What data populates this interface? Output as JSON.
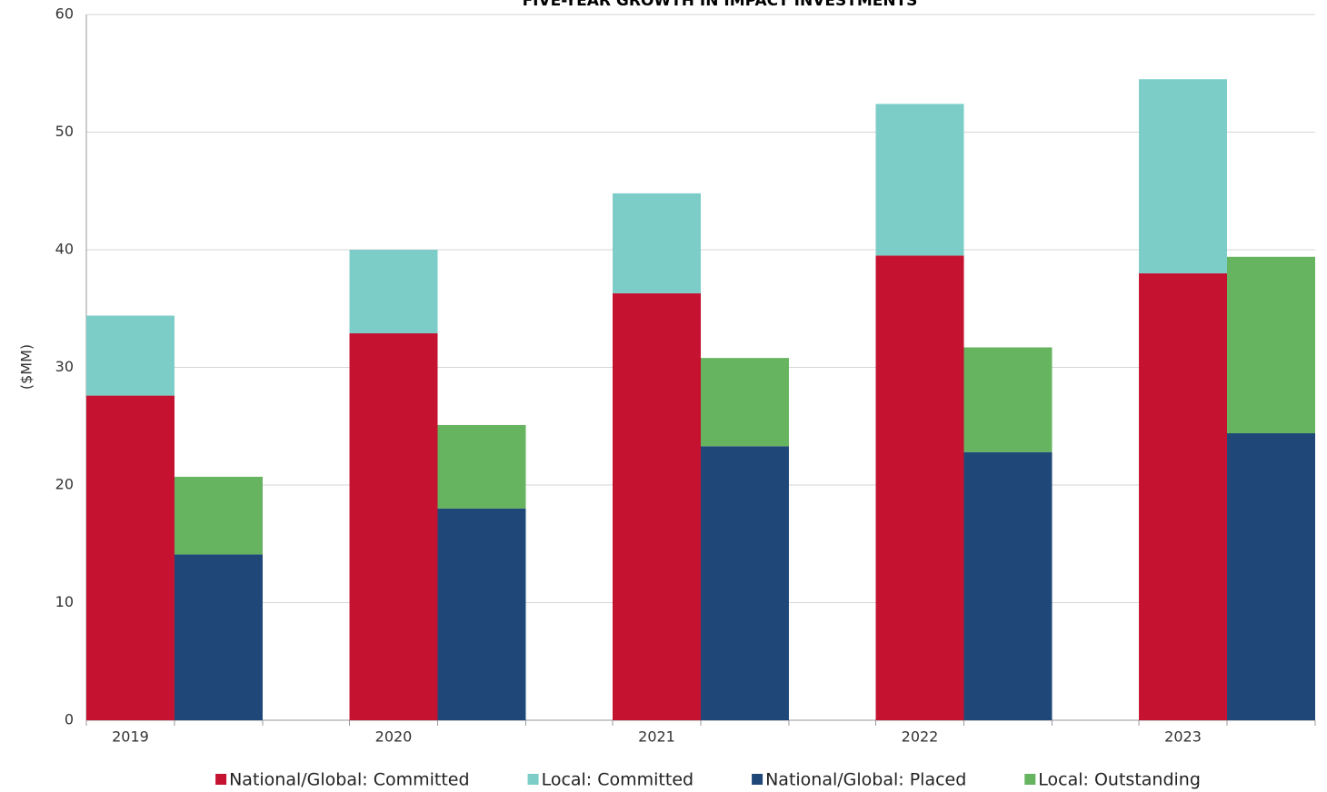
{
  "chart_data": {
    "type": "stacked-grouped-bar",
    "title": "FIVE-YEAR GROWTH IN IMPACT INVESTMENTS",
    "y_label": "($MM)",
    "categories": [
      "2019",
      "2020",
      "2021",
      "2022",
      "2023"
    ],
    "series": [
      {
        "name": "National/Global: Committed",
        "color": "#c41230",
        "stack": "left",
        "values": [
          27.6,
          32.9,
          36.3,
          39.5,
          38.0
        ]
      },
      {
        "name": "Local: Committed",
        "color": "#7ccdc8",
        "stack": "left",
        "values": [
          6.8,
          7.1,
          8.5,
          12.9,
          16.5
        ]
      },
      {
        "name": "National/Global: Placed",
        "color": "#1f4878",
        "stack": "right",
        "values": [
          14.1,
          18.0,
          23.3,
          22.8,
          24.4
        ]
      },
      {
        "name": "Local: Outstanding",
        "color": "#66b360",
        "stack": "right",
        "values": [
          6.6,
          7.1,
          7.5,
          8.9,
          15.0
        ]
      }
    ],
    "ylim": [
      0,
      60
    ],
    "yticks": [
      0,
      10,
      20,
      30,
      40,
      50,
      60
    ],
    "grid": true,
    "legend": "bottom"
  }
}
